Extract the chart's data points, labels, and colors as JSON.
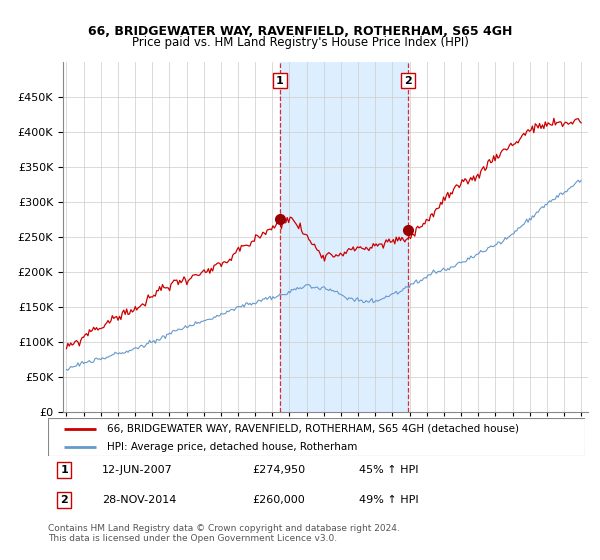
{
  "title": "66, BRIDGEWATER WAY, RAVENFIELD, ROTHERHAM, S65 4GH",
  "subtitle": "Price paid vs. HM Land Registry's House Price Index (HPI)",
  "legend_line1": "66, BRIDGEWATER WAY, RAVENFIELD, ROTHERHAM, S65 4GH (detached house)",
  "legend_line2": "HPI: Average price, detached house, Rotherham",
  "transaction1_date": "12-JUN-2007",
  "transaction1_price": "£274,950",
  "transaction1_hpi": "45% ↑ HPI",
  "transaction2_date": "28-NOV-2014",
  "transaction2_price": "£260,000",
  "transaction2_hpi": "49% ↑ HPI",
  "footer": "Contains HM Land Registry data © Crown copyright and database right 2024.\nThis data is licensed under the Open Government Licence v3.0.",
  "red_color": "#cc0000",
  "blue_color": "#6699cc",
  "shading_color": "#ddeeff",
  "ylim": [
    0,
    500000
  ],
  "yticks": [
    0,
    50000,
    100000,
    150000,
    200000,
    250000,
    300000,
    350000,
    400000,
    450000
  ],
  "transaction1_x": 2007.44,
  "transaction1_y": 274950,
  "transaction2_x": 2014.91,
  "transaction2_y": 260000,
  "xmin": 1995,
  "xmax": 2025
}
